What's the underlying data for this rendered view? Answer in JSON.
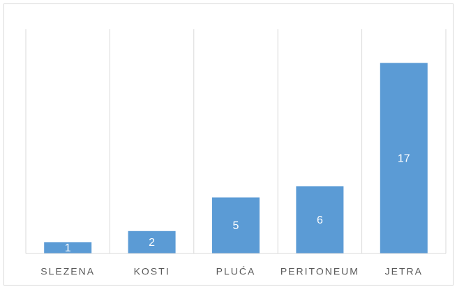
{
  "chart_data": {
    "type": "bar",
    "categories": [
      "SLEZENA",
      "KOSTI",
      "PLUĆA",
      "PERITONEUM",
      "JETRA"
    ],
    "values": [
      1,
      2,
      5,
      6,
      17
    ],
    "color": "#5b9bd5",
    "ylim": [
      0,
      20
    ]
  }
}
